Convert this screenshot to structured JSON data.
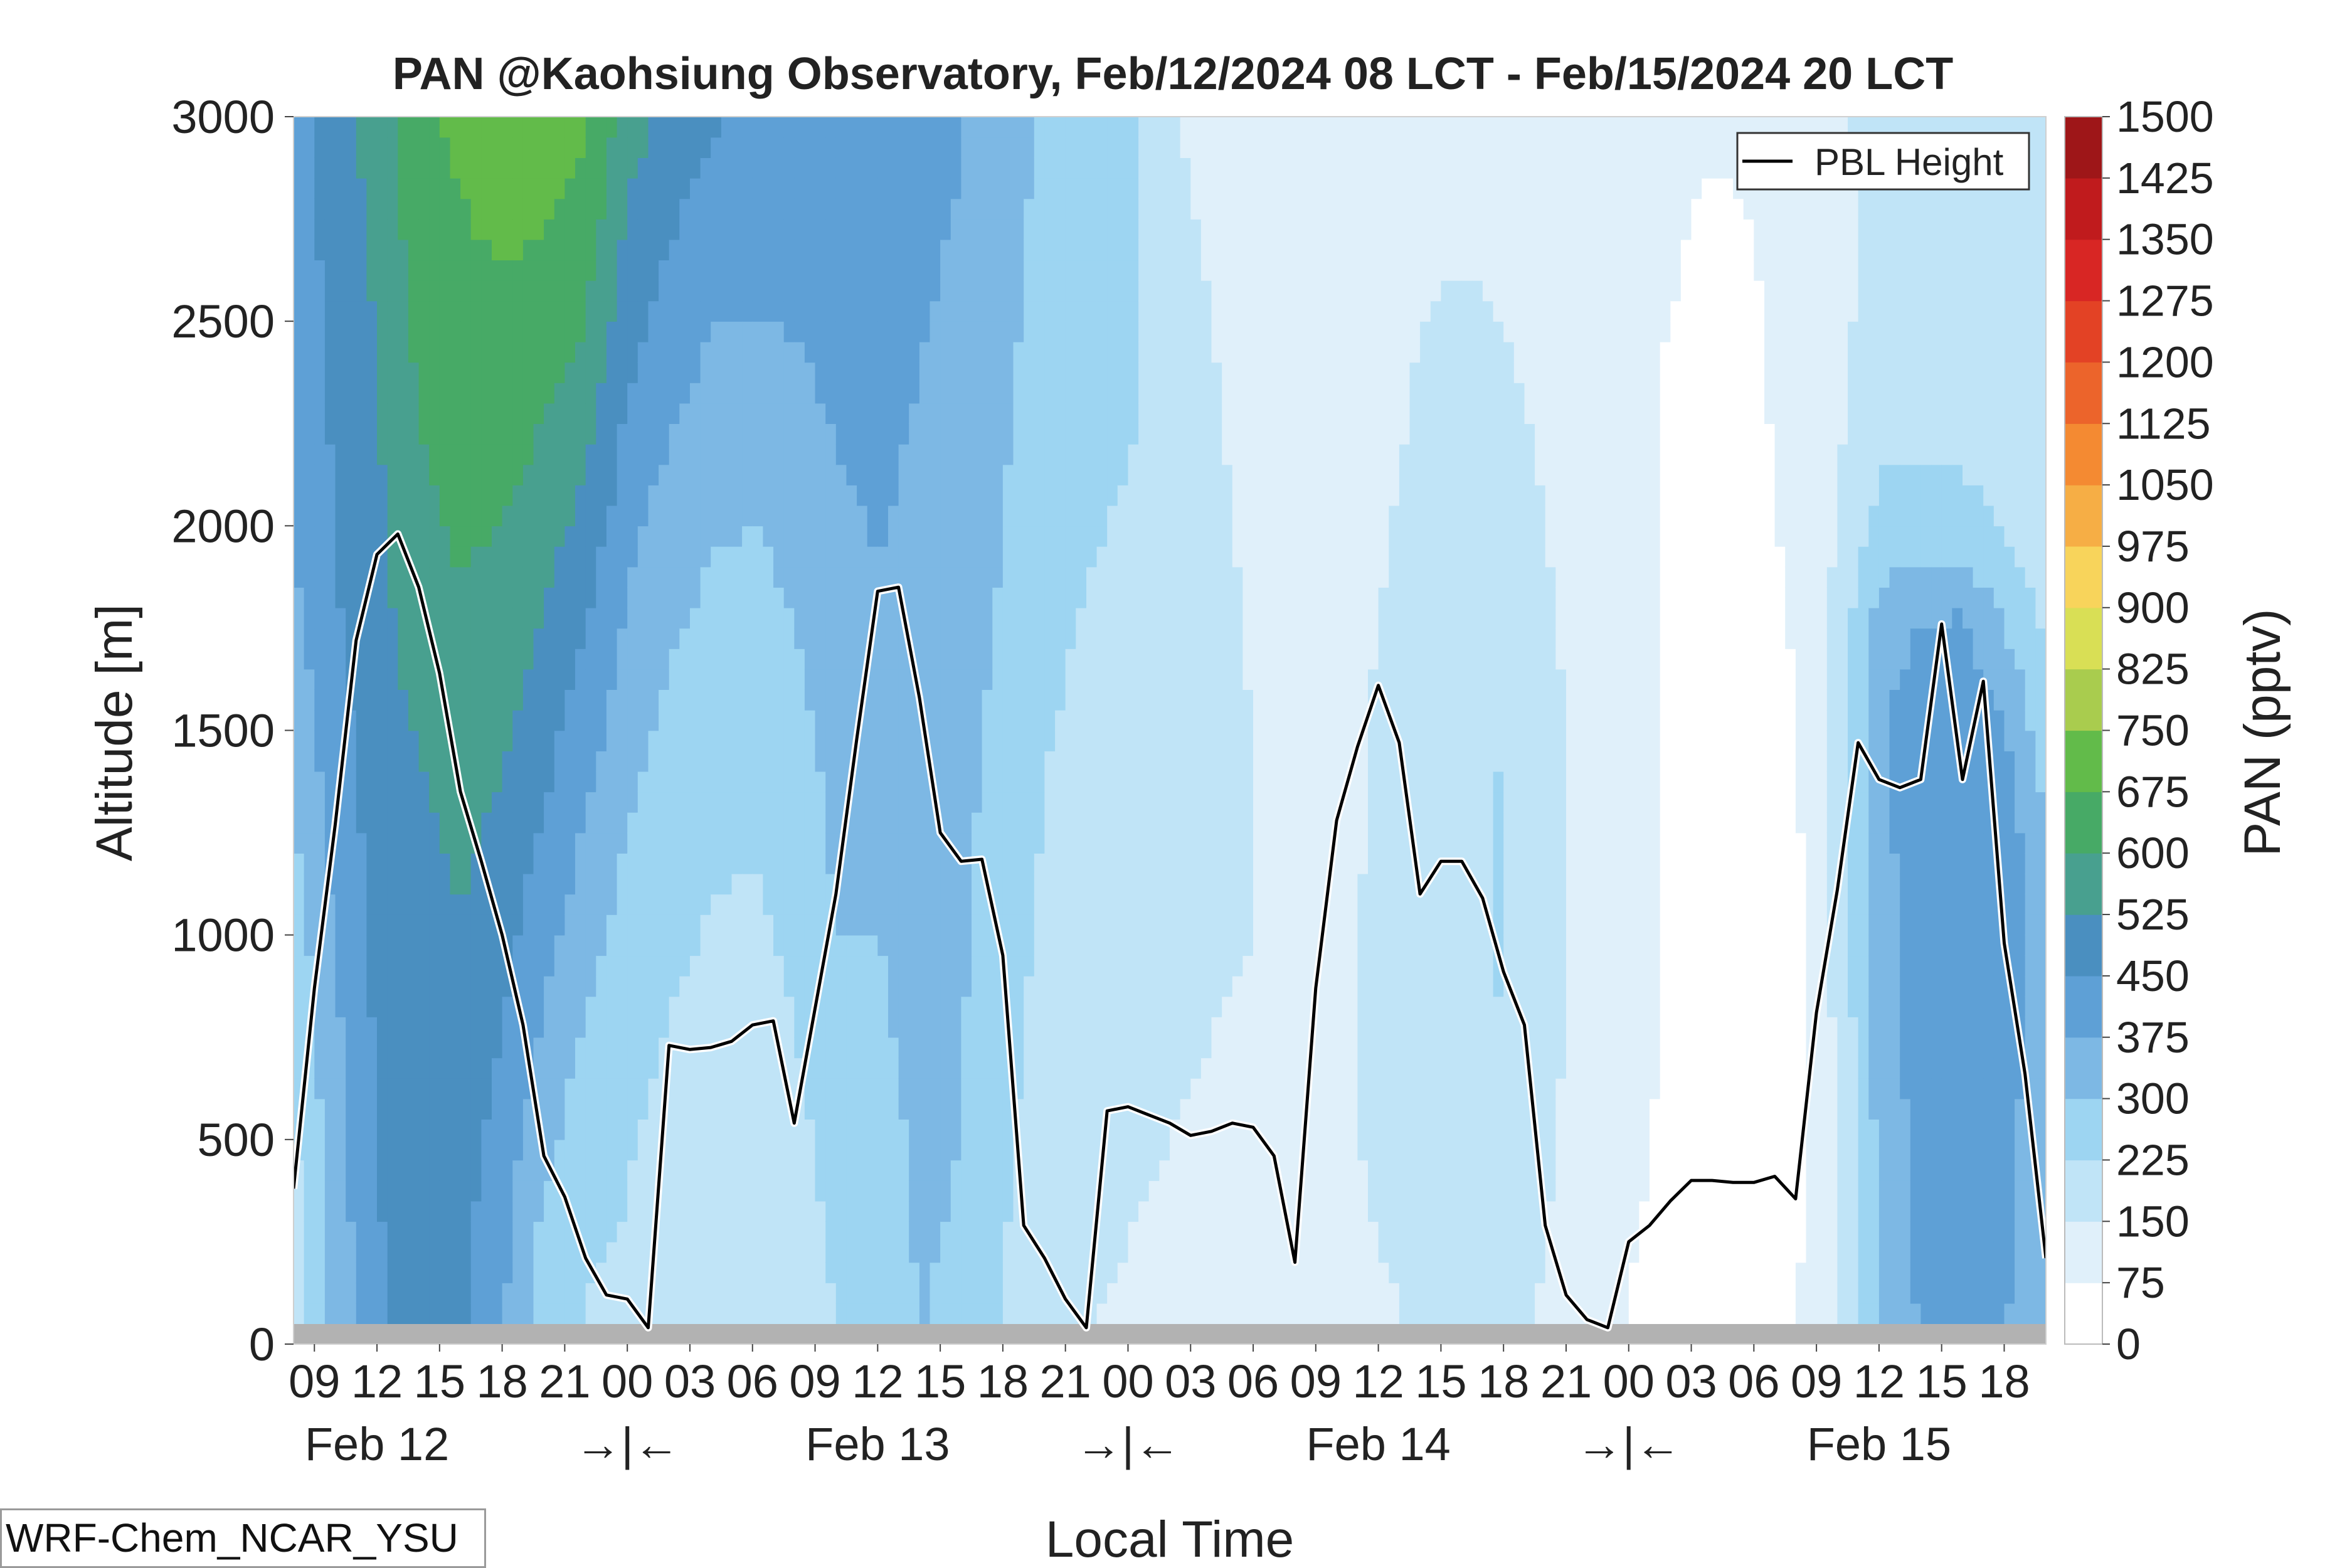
{
  "chart_data": {
    "type": "heatmap",
    "title": "PAN @Kaohsiung Observatory, Feb/12/2024 08 LCT - Feb/15/2024 20 LCT",
    "xlabel": "Local Time",
    "ylabel": "Altitude [m]",
    "colorbar_label": "PAN (pptv)",
    "ylim": [
      0,
      3000
    ],
    "y_ticks": [
      0,
      500,
      1000,
      1500,
      2000,
      2500,
      3000
    ],
    "hour_tick_labels": [
      "09",
      "12",
      "15",
      "18",
      "21",
      "00",
      "03",
      "06",
      "09",
      "12",
      "15",
      "18",
      "21",
      "00",
      "03",
      "06",
      "09",
      "12",
      "15",
      "18",
      "21",
      "00",
      "03",
      "06",
      "09",
      "12",
      "15",
      "18"
    ],
    "day_labels": [
      {
        "label": "Feb 12",
        "at_hour": 12
      },
      {
        "label": "→|←",
        "at_hour": 24
      },
      {
        "label": "Feb 13",
        "at_hour": 36
      },
      {
        "label": "→|←",
        "at_hour": 48
      },
      {
        "label": "Feb 14",
        "at_hour": 60
      },
      {
        "label": "→|←",
        "at_hour": 72
      },
      {
        "label": "Feb 15",
        "at_hour": 84
      }
    ],
    "color_levels": [
      0,
      75,
      150,
      225,
      300,
      375,
      450,
      525,
      600,
      675,
      750,
      825,
      900,
      975,
      1050,
      1125,
      1200,
      1275,
      1350,
      1425,
      1500
    ],
    "colors": [
      "#ffffff",
      "#e0f0fa",
      "#c0e4f7",
      "#9dd5f2",
      "#7db8e4",
      "#5ea0d6",
      "#4a8fc0",
      "#48a08f",
      "#47aa66",
      "#62bb4a",
      "#a9cc4e",
      "#d9df55",
      "#f8d45b",
      "#f6ae45",
      "#f48a32",
      "#ec642b",
      "#e34225",
      "#d82624",
      "#c01b1d",
      "#9e1618"
    ],
    "legend": {
      "entries": [
        "PBL Height"
      ],
      "placement": "top-right"
    },
    "heatmap_hours": [
      8,
      10,
      12,
      14,
      16,
      18,
      20,
      22,
      24,
      26,
      28,
      30,
      32,
      34,
      36,
      38,
      40,
      42,
      44,
      46,
      48,
      50,
      52,
      54,
      56,
      58,
      60,
      62,
      64,
      66,
      68,
      70,
      72,
      74,
      76,
      78,
      80,
      82,
      84,
      86,
      88,
      90,
      92
    ],
    "heatmap_altitudes": [
      0,
      250,
      500,
      750,
      1000,
      1250,
      1500,
      1750,
      2000,
      2250,
      2500,
      2750,
      3000
    ],
    "heatmap_values": [
      [
        200,
        200,
        210,
        230,
        260,
        290,
        320,
        350,
        380,
        390,
        400,
        410,
        420
      ],
      [
        320,
        330,
        340,
        360,
        380,
        400,
        420,
        440,
        450,
        460,
        470,
        480,
        490
      ],
      [
        440,
        445,
        450,
        460,
        470,
        480,
        490,
        500,
        510,
        520,
        530,
        540,
        560
      ],
      [
        470,
        475,
        480,
        490,
        500,
        510,
        530,
        560,
        580,
        600,
        620,
        640,
        660
      ],
      [
        460,
        470,
        480,
        500,
        520,
        540,
        560,
        590,
        610,
        630,
        650,
        670,
        690
      ],
      [
        380,
        400,
        420,
        450,
        480,
        510,
        540,
        570,
        600,
        630,
        660,
        690,
        720
      ],
      [
        250,
        280,
        320,
        360,
        400,
        440,
        480,
        520,
        560,
        600,
        640,
        680,
        710
      ],
      [
        220,
        230,
        260,
        290,
        330,
        370,
        410,
        450,
        500,
        550,
        600,
        650,
        690
      ],
      [
        210,
        220,
        230,
        250,
        270,
        300,
        330,
        360,
        400,
        440,
        480,
        520,
        560
      ],
      [
        200,
        200,
        210,
        220,
        240,
        260,
        280,
        310,
        340,
        380,
        420,
        460,
        500
      ],
      [
        190,
        190,
        200,
        210,
        220,
        240,
        260,
        280,
        310,
        340,
        380,
        420,
        460
      ],
      [
        160,
        170,
        180,
        190,
        210,
        230,
        250,
        270,
        300,
        330,
        370,
        410,
        440
      ],
      [
        160,
        180,
        200,
        220,
        240,
        260,
        280,
        300,
        320,
        350,
        380,
        410,
        440
      ],
      [
        220,
        240,
        260,
        280,
        300,
        310,
        320,
        340,
        360,
        380,
        400,
        420,
        440
      ],
      [
        260,
        270,
        280,
        290,
        300,
        320,
        340,
        360,
        380,
        390,
        400,
        410,
        420
      ],
      [
        300,
        305,
        310,
        315,
        320,
        330,
        340,
        350,
        360,
        370,
        380,
        390,
        400
      ],
      [
        290,
        295,
        300,
        305,
        310,
        315,
        320,
        330,
        340,
        350,
        360,
        370,
        380
      ],
      [
        220,
        230,
        240,
        250,
        260,
        270,
        280,
        290,
        300,
        310,
        320,
        330,
        340
      ],
      [
        170,
        180,
        190,
        200,
        210,
        220,
        230,
        240,
        250,
        260,
        270,
        280,
        290
      ],
      [
        150,
        160,
        170,
        180,
        190,
        200,
        210,
        220,
        230,
        240,
        250,
        260,
        270
      ],
      [
        140,
        150,
        160,
        170,
        180,
        190,
        200,
        210,
        220,
        230,
        240,
        250,
        240
      ],
      [
        130,
        140,
        150,
        160,
        170,
        180,
        190,
        200,
        210,
        210,
        200,
        180,
        160
      ],
      [
        120,
        130,
        140,
        150,
        160,
        170,
        180,
        180,
        170,
        160,
        150,
        130,
        110
      ],
      [
        110,
        120,
        130,
        140,
        150,
        150,
        150,
        140,
        130,
        120,
        110,
        100,
        90
      ],
      [
        110,
        120,
        130,
        130,
        130,
        130,
        120,
        110,
        100,
        95,
        90,
        85,
        80
      ],
      [
        120,
        130,
        140,
        140,
        140,
        130,
        120,
        110,
        100,
        95,
        90,
        85,
        80
      ],
      [
        140,
        150,
        160,
        160,
        160,
        160,
        160,
        150,
        140,
        130,
        120,
        110,
        100
      ],
      [
        150,
        165,
        180,
        190,
        200,
        200,
        195,
        185,
        170,
        160,
        150,
        140,
        130
      ],
      [
        160,
        175,
        190,
        205,
        210,
        210,
        205,
        195,
        180,
        165,
        155,
        145,
        135
      ],
      [
        170,
        190,
        210,
        225,
        230,
        230,
        225,
        210,
        190,
        170,
        150,
        140,
        130
      ],
      [
        140,
        150,
        160,
        170,
        175,
        175,
        170,
        160,
        150,
        140,
        125,
        115,
        105
      ],
      [
        100,
        110,
        120,
        125,
        130,
        130,
        130,
        125,
        120,
        110,
        100,
        90,
        85
      ],
      [
        70,
        80,
        85,
        90,
        95,
        95,
        95,
        95,
        90,
        85,
        85,
        85,
        85
      ],
      [
        60,
        60,
        65,
        70,
        70,
        70,
        70,
        70,
        70,
        70,
        75,
        80,
        85
      ],
      [
        60,
        55,
        55,
        55,
        55,
        55,
        55,
        55,
        55,
        60,
        65,
        70,
        80
      ],
      [
        60,
        55,
        50,
        50,
        50,
        50,
        50,
        50,
        55,
        60,
        65,
        75,
        85
      ],
      [
        70,
        65,
        60,
        60,
        60,
        60,
        70,
        80,
        90,
        100,
        110,
        120,
        130
      ],
      [
        130,
        140,
        150,
        160,
        170,
        180,
        180,
        170,
        150,
        140,
        130,
        130,
        140
      ],
      [
        300,
        310,
        320,
        330,
        340,
        350,
        360,
        330,
        250,
        200,
        180,
        170,
        170
      ],
      [
        380,
        390,
        400,
        410,
        415,
        420,
        430,
        380,
        260,
        210,
        190,
        180,
        180
      ],
      [
        400,
        405,
        410,
        420,
        430,
        440,
        440,
        390,
        250,
        200,
        190,
        180,
        180
      ],
      [
        380,
        390,
        400,
        410,
        420,
        420,
        380,
        300,
        220,
        190,
        180,
        180,
        180
      ],
      [
        300,
        310,
        320,
        330,
        330,
        310,
        260,
        210,
        180,
        170,
        170,
        170,
        170
      ]
    ],
    "pbl_height": {
      "name": "PBL Height",
      "hours": [
        8,
        9,
        10,
        11,
        12,
        13,
        14,
        15,
        16,
        17,
        18,
        19,
        20,
        21,
        22,
        23,
        24,
        25,
        26,
        27,
        28,
        29,
        30,
        31,
        32,
        33,
        34,
        35,
        36,
        37,
        38,
        39,
        40,
        41,
        42,
        43,
        44,
        45,
        46,
        47,
        48,
        49,
        50,
        51,
        52,
        53,
        54,
        55,
        56,
        57,
        58,
        59,
        60,
        61,
        62,
        63,
        64,
        65,
        66,
        67,
        68,
        69,
        70,
        71,
        72,
        73,
        74,
        75,
        76,
        77,
        78,
        79,
        80,
        81,
        82,
        83,
        84,
        85,
        86,
        87,
        88,
        89,
        90,
        91,
        92
      ],
      "values": [
        380,
        870,
        1270,
        1720,
        1930,
        1980,
        1850,
        1640,
        1350,
        1180,
        1000,
        780,
        460,
        360,
        210,
        120,
        110,
        40,
        730,
        720,
        725,
        740,
        780,
        790,
        540,
        820,
        1100,
        1480,
        1840,
        1850,
        1580,
        1250,
        1180,
        1185,
        950,
        290,
        210,
        110,
        40,
        570,
        580,
        560,
        540,
        510,
        520,
        540,
        530,
        460,
        200,
        870,
        1280,
        1460,
        1610,
        1470,
        1100,
        1180,
        1180,
        1090,
        910,
        780,
        290,
        120,
        60,
        40,
        250,
        290,
        350,
        400,
        400,
        395,
        395,
        410,
        355,
        810,
        1110,
        1470,
        1380,
        1360,
        1380,
        1760,
        1380,
        1620,
        980,
        660,
        210
      ]
    }
  },
  "footer": {
    "label": "WRF-Chem_NCAR_YSU"
  }
}
